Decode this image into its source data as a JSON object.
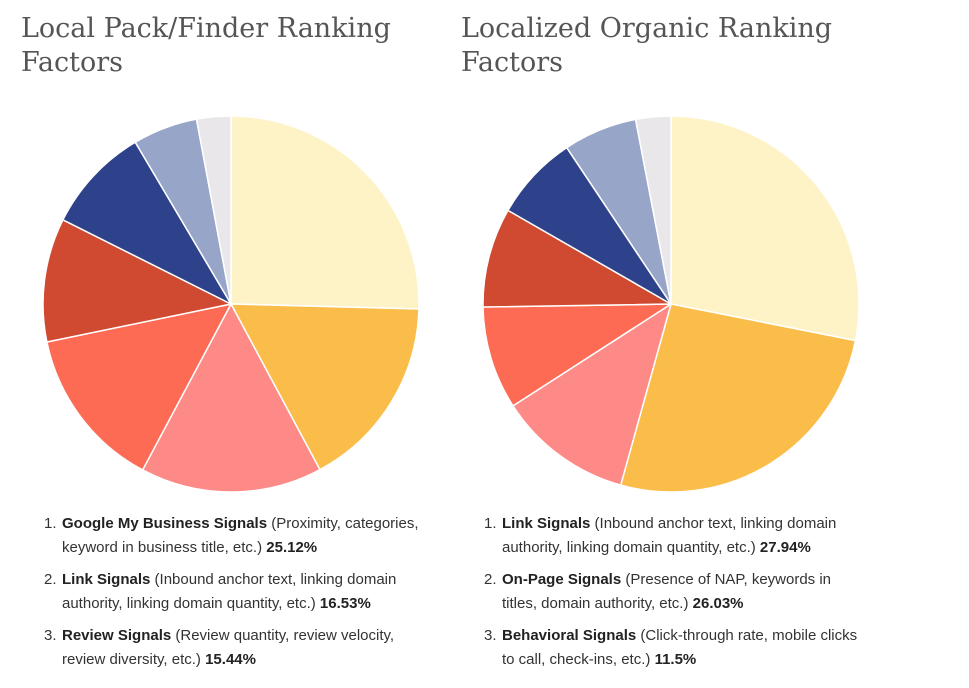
{
  "chart_data": [
    {
      "type": "pie",
      "title": "Local Pack/Finder Ranking Factors",
      "slice_colors": [
        "#fef3c7",
        "#fbbd4a",
        "#fd8a87",
        "#fd6b55",
        "#cf4a30",
        "#2d428a",
        "#97a5c8",
        "#e9e7e9"
      ],
      "slice_values": [
        25.12,
        16.53,
        15.44,
        13.8,
        10.5,
        9.0,
        5.5,
        2.9
      ],
      "factors": [
        {
          "num": "1.",
          "name": "Google My Business Signals",
          "desc": "(Proximity, categories, keyword in business title, etc.)",
          "value": "25.12%"
        },
        {
          "num": "2.",
          "name": "Link Signals",
          "desc": "(Inbound anchor text, linking domain authority, linking domain quantity, etc.)",
          "value": "16.53%"
        },
        {
          "num": "3.",
          "name": "Review Signals",
          "desc": "(Review quantity, review velocity, review diversity, etc.)",
          "value": "15.44%"
        }
      ]
    },
    {
      "type": "pie",
      "title": "Localized Organic Ranking Factors",
      "slice_colors": [
        "#fef3c7",
        "#fbbd4a",
        "#fd8a87",
        "#fd6b55",
        "#cf4a30",
        "#2d428a",
        "#97a5c8",
        "#e9e7e9"
      ],
      "slice_values": [
        27.94,
        26.03,
        11.5,
        8.8,
        8.5,
        7.3,
        6.3,
        3.0
      ],
      "factors": [
        {
          "num": "1.",
          "name": "Link Signals",
          "desc": "(Inbound anchor text, linking domain authority, linking domain quantity, etc.)",
          "value": "27.94%"
        },
        {
          "num": "2.",
          "name": "On-Page Signals",
          "desc": "(Presence of NAP, keywords in titles, domain authority, etc.)",
          "value": "26.03%"
        },
        {
          "num": "3.",
          "name": "Behavioral Signals",
          "desc": "(Click-through rate, mobile clicks to call, check-ins, etc.)",
          "value": "11.5%"
        }
      ]
    }
  ]
}
